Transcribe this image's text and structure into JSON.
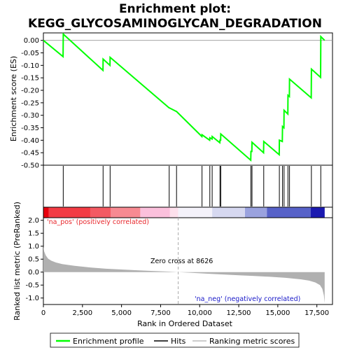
{
  "chart_data": {
    "type": "line",
    "title_line1": "Enrichment plot:",
    "title_line2": "KEGG_GLYCOSAMINOGLYCAN_DEGRADATION",
    "x_label": "Rank in Ordered Dataset",
    "es_ylabel": "Enrichment score (ES)",
    "metric_ylabel": "Ranked list metric (PreRanked)",
    "xlim": [
      0,
      18500
    ],
    "x_ticks": [
      0,
      2500,
      5000,
      7500,
      10000,
      12500,
      15000,
      17500
    ],
    "x_tick_labels": [
      "0",
      "2,500",
      "5,000",
      "7,500",
      "10,000",
      "12,500",
      "15,000",
      "17,500"
    ],
    "es_ylim": [
      -0.5,
      0.03
    ],
    "es_ticks": [
      0.0,
      -0.05,
      -0.1,
      -0.15,
      -0.2,
      -0.25,
      -0.3,
      -0.35,
      -0.4,
      -0.45,
      -0.5
    ],
    "es_tick_labels": [
      "0.00",
      "-0.05",
      "-0.10",
      "-0.15",
      "-0.20",
      "-0.25",
      "-0.30",
      "-0.35",
      "-0.40",
      "-0.45",
      "-0.50"
    ],
    "metric_ylim": [
      -1.25,
      2.1
    ],
    "metric_ticks": [
      2.0,
      1.5,
      1.0,
      0.5,
      0.0,
      -0.5,
      -1.0
    ],
    "metric_tick_labels": [
      "2.0",
      "1.5",
      "1.0",
      "0.5",
      "0.0",
      "-0.5",
      "-1.0"
    ],
    "total_genes": 18000,
    "zero_cross_rank": 8626,
    "zero_cross_label": "Zero cross at 8626",
    "pos_label": "'na_pos' (positively correlated)",
    "neg_label": "'na_neg' (negatively correlated)",
    "hits": [
      1270,
      3820,
      4270,
      8050,
      8520,
      10150,
      10650,
      10800,
      11300,
      11350,
      13280,
      13350,
      14100,
      15100,
      15300,
      15400,
      15650,
      15750,
      17150,
      17750
    ],
    "es_points": [
      [
        0,
        0.0
      ],
      [
        1260,
        -0.065
      ],
      [
        1270,
        0.025
      ],
      [
        3810,
        -0.12
      ],
      [
        3820,
        -0.075
      ],
      [
        4260,
        -0.1
      ],
      [
        4270,
        -0.068
      ],
      [
        8040,
        -0.27
      ],
      [
        8050,
        -0.27
      ],
      [
        8510,
        -0.285
      ],
      [
        8520,
        -0.285
      ],
      [
        10140,
        -0.385
      ],
      [
        10150,
        -0.378
      ],
      [
        10640,
        -0.4
      ],
      [
        10650,
        -0.39
      ],
      [
        10790,
        -0.395
      ],
      [
        10800,
        -0.385
      ],
      [
        11290,
        -0.41
      ],
      [
        11300,
        -0.4
      ],
      [
        11340,
        -0.4
      ],
      [
        11350,
        -0.375
      ],
      [
        13270,
        -0.48
      ],
      [
        13280,
        -0.445
      ],
      [
        13340,
        -0.445
      ],
      [
        13350,
        -0.408
      ],
      [
        14090,
        -0.45
      ],
      [
        14100,
        -0.405
      ],
      [
        15090,
        -0.458
      ],
      [
        15100,
        -0.4
      ],
      [
        15290,
        -0.405
      ],
      [
        15300,
        -0.345
      ],
      [
        15390,
        -0.35
      ],
      [
        15400,
        -0.28
      ],
      [
        15640,
        -0.295
      ],
      [
        15650,
        -0.22
      ],
      [
        15740,
        -0.225
      ],
      [
        15750,
        -0.155
      ],
      [
        17140,
        -0.23
      ],
      [
        17150,
        -0.115
      ],
      [
        17740,
        -0.148
      ],
      [
        17750,
        0.015
      ],
      [
        18000,
        0.0
      ]
    ],
    "metric_profile": [
      [
        0,
        1.0
      ],
      [
        50,
        0.8
      ],
      [
        150,
        0.65
      ],
      [
        300,
        0.52
      ],
      [
        500,
        0.44
      ],
      [
        800,
        0.37
      ],
      [
        1200,
        0.31
      ],
      [
        2000,
        0.24
      ],
      [
        3000,
        0.18
      ],
      [
        4000,
        0.13
      ],
      [
        5000,
        0.1
      ],
      [
        6000,
        0.07
      ],
      [
        7000,
        0.045
      ],
      [
        8000,
        0.02
      ],
      [
        8626,
        0.0
      ],
      [
        9500,
        -0.03
      ],
      [
        10500,
        -0.06
      ],
      [
        11500,
        -0.09
      ],
      [
        12500,
        -0.12
      ],
      [
        13500,
        -0.15
      ],
      [
        14500,
        -0.18
      ],
      [
        15500,
        -0.22
      ],
      [
        16500,
        -0.28
      ],
      [
        17000,
        -0.33
      ],
      [
        17400,
        -0.4
      ],
      [
        17700,
        -0.5
      ],
      [
        17850,
        -0.65
      ],
      [
        17950,
        -0.9
      ],
      [
        18000,
        -1.2
      ]
    ],
    "colors": {
      "es_line": "#00ff00",
      "hits": "#000000",
      "metric_fill": "#b0b0b0",
      "pos_text": "#e8282d",
      "neg_text": "#1818c8"
    },
    "heat_segments": [
      {
        "from": 0,
        "to": 350,
        "color": "#e8000e"
      },
      {
        "from": 350,
        "to": 3000,
        "color": "#f23c44"
      },
      {
        "from": 3000,
        "to": 4300,
        "color": "#f35a63"
      },
      {
        "from": 4300,
        "to": 6200,
        "color": "#f78a92"
      },
      {
        "from": 6200,
        "to": 8100,
        "color": "#fbc0dc"
      },
      {
        "from": 8100,
        "to": 8626,
        "color": "#fde0ec"
      },
      {
        "from": 8626,
        "to": 10800,
        "color": "#f4f2fa"
      },
      {
        "from": 10800,
        "to": 12900,
        "color": "#d6d8f0"
      },
      {
        "from": 12900,
        "to": 14300,
        "color": "#9aa2de"
      },
      {
        "from": 14300,
        "to": 17100,
        "color": "#5762c8"
      },
      {
        "from": 17100,
        "to": 18000,
        "color": "#1b1ab0"
      }
    ],
    "legend": [
      "Enrichment profile",
      "Hits",
      "Ranking metric scores"
    ]
  }
}
